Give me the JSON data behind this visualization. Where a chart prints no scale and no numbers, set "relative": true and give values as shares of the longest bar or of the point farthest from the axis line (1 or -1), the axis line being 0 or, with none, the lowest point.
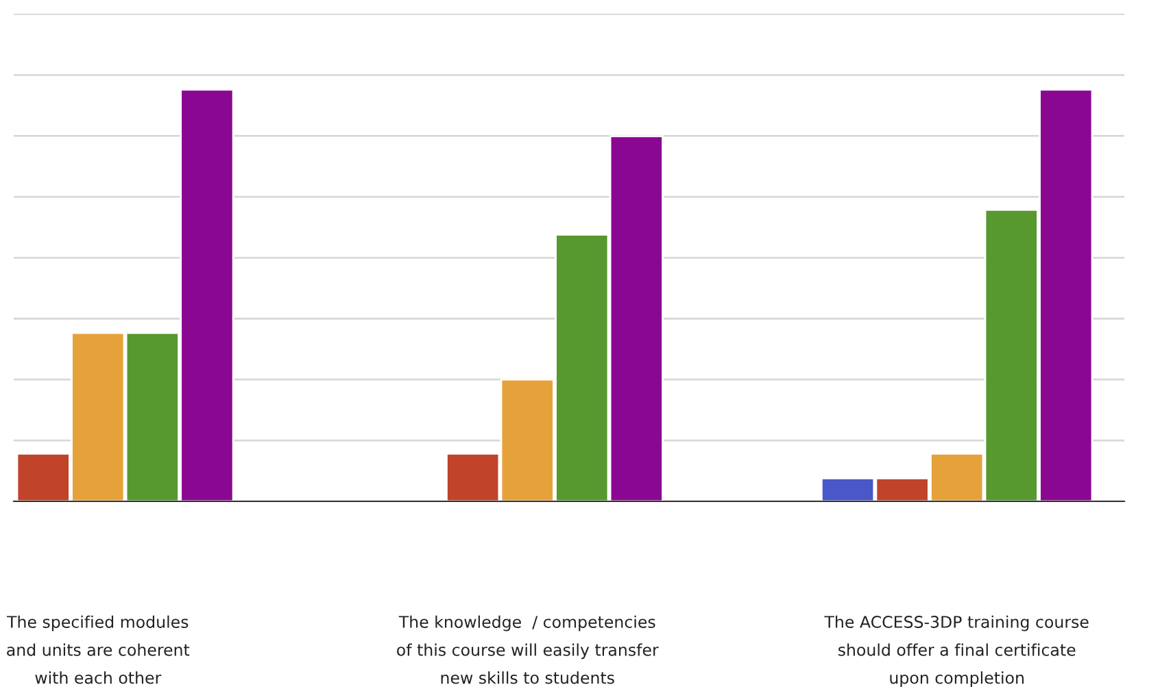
{
  "chart_data": {
    "type": "bar",
    "relative": true,
    "grid": "y",
    "legend": false,
    "categories": [
      "The specified modules\nand units are coherent\nwith each other",
      "The knowledge  / competencies\nof this course will easily transfer\nnew skills to students",
      "The ACCESS-3DP training course\nshould offer a final certificate\nupon completion"
    ],
    "series": [
      {
        "color": "#4a57c9",
        "values": [
          null,
          null,
          0.056
        ]
      },
      {
        "color": "#c0432a",
        "values": [
          0.116,
          0.116,
          0.056
        ]
      },
      {
        "color": "#e6a23a",
        "values": [
          0.409,
          0.296,
          0.116
        ]
      },
      {
        "color": "#57992f",
        "values": [
          0.409,
          0.648,
          0.708
        ]
      },
      {
        "color": "#8a0891",
        "values": [
          1,
          0.887,
          1
        ]
      }
    ]
  }
}
